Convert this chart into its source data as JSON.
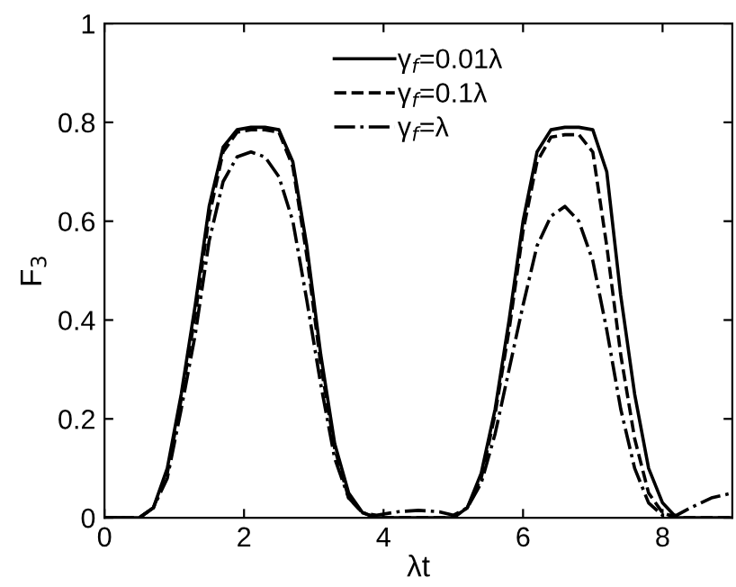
{
  "chart_data": {
    "type": "line",
    "xlabel": "λt",
    "ylabel": "F$_{3}$",
    "x": [
      0,
      0.5,
      0.7,
      0.9,
      1.1,
      1.3,
      1.5,
      1.7,
      1.9,
      2.1,
      2.3,
      2.5,
      2.7,
      2.9,
      3.1,
      3.3,
      3.5,
      3.7,
      3.9,
      4.2,
      4.5,
      4.8,
      5.0,
      5.2,
      5.4,
      5.6,
      5.8,
      6.0,
      6.2,
      6.4,
      6.6,
      6.8,
      7.0,
      7.2,
      7.4,
      7.6,
      7.8,
      8.0,
      8.2,
      8.4,
      8.7,
      9.0
    ],
    "series": [
      {
        "name": "γ$_{f}$=0.01λ",
        "color": "#000000",
        "line_style": "solid",
        "values": [
          0,
          0,
          0.02,
          0.1,
          0.25,
          0.43,
          0.63,
          0.75,
          0.785,
          0.79,
          0.79,
          0.785,
          0.72,
          0.55,
          0.33,
          0.15,
          0.05,
          0.01,
          0,
          0,
          0,
          0,
          0,
          0.02,
          0.09,
          0.22,
          0.4,
          0.6,
          0.74,
          0.785,
          0.79,
          0.79,
          0.785,
          0.7,
          0.45,
          0.25,
          0.1,
          0.03,
          0,
          0,
          0,
          0
        ]
      },
      {
        "name": "γ$_{f}$=0.1λ",
        "color": "#000000",
        "line_style": "dashed",
        "values": [
          0,
          0,
          0.02,
          0.09,
          0.24,
          0.41,
          0.61,
          0.74,
          0.78,
          0.785,
          0.785,
          0.78,
          0.71,
          0.53,
          0.31,
          0.14,
          0.04,
          0.01,
          0,
          0,
          0,
          0,
          0,
          0.02,
          0.08,
          0.21,
          0.38,
          0.58,
          0.72,
          0.77,
          0.775,
          0.775,
          0.74,
          0.55,
          0.33,
          0.16,
          0.05,
          0.01,
          0,
          0,
          0,
          0
        ]
      },
      {
        "name": "γ$_{f}$=λ",
        "color": "#000000",
        "line_style": "dashdot",
        "values": [
          0,
          0,
          0.02,
          0.08,
          0.22,
          0.37,
          0.56,
          0.68,
          0.73,
          0.74,
          0.73,
          0.69,
          0.6,
          0.44,
          0.27,
          0.12,
          0.04,
          0.01,
          0.005,
          0.012,
          0.015,
          0.012,
          0.005,
          0.02,
          0.07,
          0.17,
          0.3,
          0.43,
          0.55,
          0.61,
          0.63,
          0.6,
          0.52,
          0.38,
          0.22,
          0.1,
          0.03,
          0.005,
          0.005,
          0.02,
          0.04,
          0.05
        ]
      }
    ],
    "xlim": [
      0,
      9
    ],
    "xticks": [
      0,
      2,
      4,
      6,
      8
    ],
    "ylim": [
      0,
      1
    ],
    "yticks": [
      0,
      0.2,
      0.4,
      0.6,
      0.8,
      1
    ],
    "legend": "top center",
    "grid": false
  }
}
